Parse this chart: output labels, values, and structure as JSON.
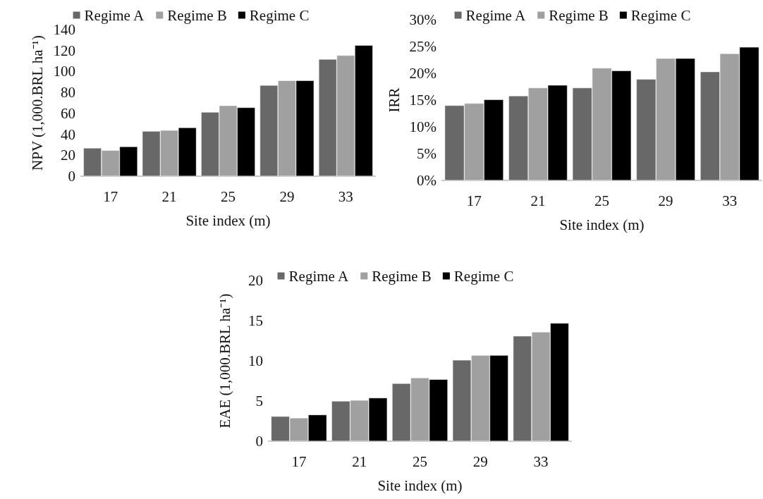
{
  "chart_data": [
    {
      "type": "bar",
      "xlabel": "Site index (m)",
      "ylabel": "NPV (1,000.BRL ha⁻¹)",
      "categories": [
        "17",
        "21",
        "25",
        "29",
        "33"
      ],
      "series": [
        {
          "name": "Regime A",
          "color": "#686868",
          "values": [
            27,
            43,
            61.2,
            86.9,
            111.8
          ]
        },
        {
          "name": "Regime B",
          "color": "#a0a0a0",
          "values": [
            24.7,
            43.9,
            67.5,
            91.4,
            115.4
          ]
        },
        {
          "name": "Regime C",
          "color": "#000000",
          "values": [
            28.3,
            46.4,
            65.6,
            91.4,
            125.1
          ]
        }
      ],
      "ylim": [
        0,
        140
      ],
      "yticks": [
        0,
        20,
        40,
        60,
        80,
        100,
        120,
        140
      ],
      "grid": false,
      "legend": "top"
    },
    {
      "type": "bar",
      "xlabel": "Site index (m)",
      "ylabel": "IRR",
      "categories": [
        "17",
        "21",
        "25",
        "29",
        "33"
      ],
      "series": [
        {
          "name": "Regime A",
          "color": "#686868",
          "values": [
            14.0,
            15.8,
            17.3,
            18.9,
            20.3
          ]
        },
        {
          "name": "Regime B",
          "color": "#a0a0a0",
          "values": [
            14.4,
            17.3,
            21.0,
            22.8,
            23.7
          ]
        },
        {
          "name": "Regime C",
          "color": "#000000",
          "values": [
            15.1,
            17.8,
            20.5,
            22.8,
            24.9
          ]
        }
      ],
      "ylim": [
        0,
        30
      ],
      "yticks": [
        {
          "value": 0,
          "label": "0%"
        },
        {
          "value": 5,
          "label": "5%"
        },
        {
          "value": 10,
          "label": "10%"
        },
        {
          "value": 15,
          "label": "15%"
        },
        {
          "value": 20,
          "label": "20%"
        },
        {
          "value": 25,
          "label": "25%"
        },
        {
          "value": 30,
          "label": "30%"
        }
      ],
      "grid": false,
      "legend": "top"
    },
    {
      "type": "bar",
      "xlabel": "Site index (m)",
      "ylabel": "EAE (1,000.BRL ha⁻¹)",
      "categories": [
        "17",
        "21",
        "25",
        "29",
        "33"
      ],
      "series": [
        {
          "name": "Regime A",
          "color": "#686868",
          "values": [
            3.1,
            5.0,
            7.2,
            10.1,
            13.1
          ]
        },
        {
          "name": "Regime B",
          "color": "#a0a0a0",
          "values": [
            2.9,
            5.1,
            7.9,
            10.7,
            13.6
          ]
        },
        {
          "name": "Regime C",
          "color": "#000000",
          "values": [
            3.3,
            5.4,
            7.7,
            10.7,
            14.7
          ]
        }
      ],
      "ylim": [
        0,
        20
      ],
      "yticks": [
        0,
        5,
        10,
        15,
        20
      ],
      "grid": false,
      "legend": "top"
    }
  ]
}
